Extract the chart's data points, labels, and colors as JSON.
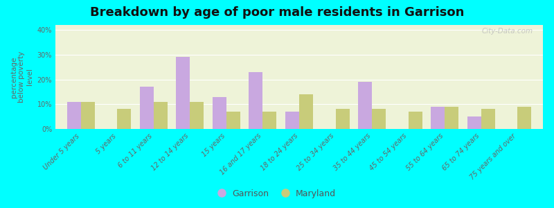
{
  "title": "Breakdown by age of poor male residents in Garrison",
  "ylabel": "percentage\nbelow poverty\nlevel",
  "categories": [
    "Under 5 years",
    "5 years",
    "6 to 11 years",
    "12 to 14 years",
    "15 years",
    "16 and 17 years",
    "18 to 24 years",
    "25 to 34 years",
    "35 to 44 years",
    "45 to 54 years",
    "55 to 64 years",
    "65 to 74 years",
    "75 years and over"
  ],
  "garrison_values": [
    11,
    0,
    17,
    29,
    13,
    23,
    7,
    0,
    19,
    0,
    9,
    5,
    0
  ],
  "maryland_values": [
    11,
    8,
    11,
    11,
    7,
    7,
    14,
    8,
    8,
    7,
    9,
    8,
    9
  ],
  "garrison_color": "#c9a8e0",
  "maryland_color": "#c8cc7a",
  "plot_bg_color": "#eef3d8",
  "background": "#00ffff",
  "ylim": [
    0,
    42
  ],
  "yticks": [
    0,
    10,
    20,
    30,
    40
  ],
  "ytick_labels": [
    "0%",
    "10%",
    "20%",
    "30%",
    "40%"
  ],
  "title_fontsize": 13,
  "axis_label_fontsize": 7.5,
  "tick_fontsize": 7,
  "bar_width": 0.38,
  "watermark": "City-Data.com"
}
